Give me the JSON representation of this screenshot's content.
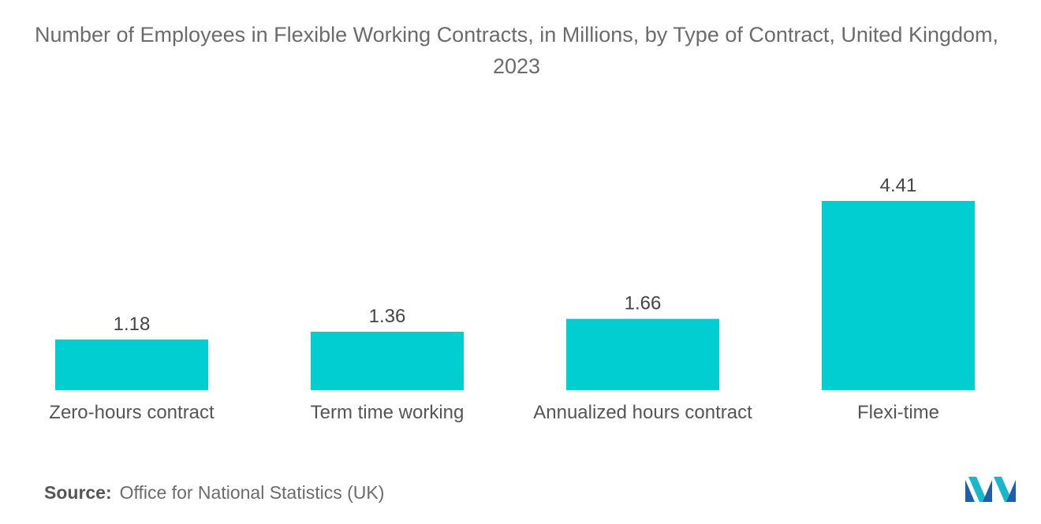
{
  "title": "Number of Employees in Flexible Working Contracts, in Millions, by Type of Contract, United Kingdom, 2023",
  "source": {
    "label": "Source:",
    "text": "Office for National Statistics (UK)"
  },
  "colors": {
    "bar": "#00CED1",
    "text": "#555555"
  },
  "logo_icon": "mordor-intelligence-logo",
  "chart_data": {
    "type": "bar",
    "title": "Number of Employees in Flexible Working Contracts, in Millions, by Type of Contract, United Kingdom, 2023",
    "categories": [
      "Zero-hours contract",
      "Term time working",
      "Annualized hours contract",
      "Flexi-time"
    ],
    "values": [
      1.18,
      1.36,
      1.66,
      4.41
    ],
    "data_labels": [
      "1.18",
      "1.36",
      "1.66",
      "4.41"
    ],
    "xlabel": "",
    "ylabel": "",
    "ylim": [
      0,
      4.41
    ],
    "grid": false,
    "legend": "none"
  }
}
